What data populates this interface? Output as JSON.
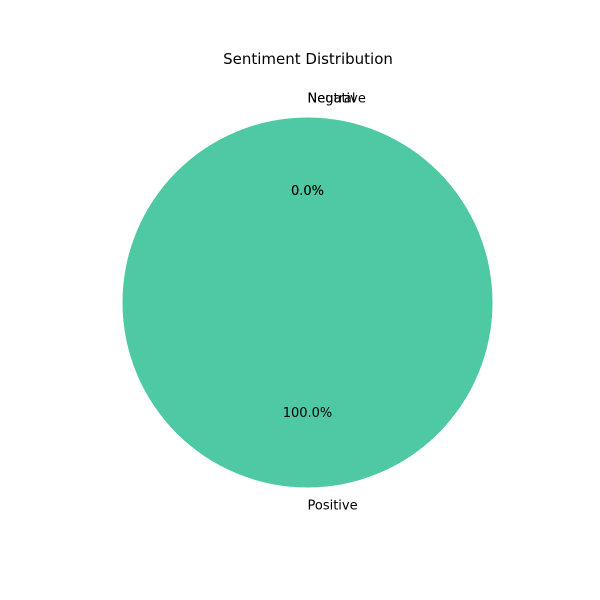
{
  "chart_data": {
    "type": "pie",
    "title": "Sentiment Distribution",
    "labels": [
      "Positive",
      "Negative",
      "Neutral"
    ],
    "values": [
      100.0,
      0.0,
      0.0
    ],
    "percent_labels": [
      "100.0%",
      "0.0%",
      "0.0%"
    ],
    "colors": [
      "#4ec9a3",
      "#f08080",
      "#9aa0a6"
    ],
    "start_angle_deg": 90,
    "counterclockwise": true,
    "legend": false
  }
}
